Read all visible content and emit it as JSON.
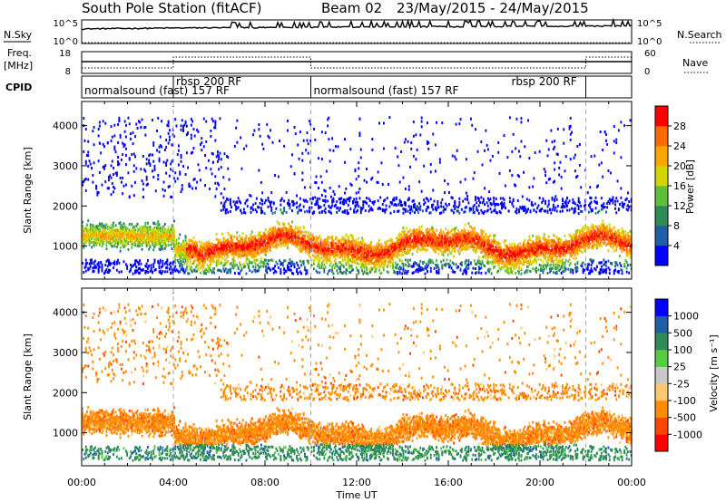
{
  "header": {
    "station": "South Pole Station (fitACF)",
    "beam": "Beam 02",
    "date_range": "23/May/2015 - 24/May/2015"
  },
  "labels": {
    "nsky": "N.Sky",
    "nsearch": "N.Search",
    "freq": "Freq.",
    "mhz": "[MHz]",
    "nave": "Nave",
    "cpid": "CPID",
    "slant_range": "Slant Range [km]",
    "time_ut": "Time UT",
    "power": "Power [dB]",
    "velocity": "Velocity [m s⁻¹]"
  },
  "ticks": {
    "nsky_hi": "10^5",
    "nsky_lo": "10^0",
    "freq_hi": "18",
    "freq_lo": "8",
    "nave_hi": "60",
    "nave_lo": "0"
  },
  "colors": {
    "power": [
      "#0000ff",
      "#1f5fa8",
      "#2e8b57",
      "#5fbf3a",
      "#d4d400",
      "#ffa500",
      "#ff6a00",
      "#ff0000"
    ],
    "velocity": [
      "#ff0000",
      "#ff4500",
      "#ff8c00",
      "#ffc870",
      "#c8c8c8",
      "#55cc44",
      "#2e8b57",
      "#1f5fa8",
      "#0000ff"
    ]
  },
  "chart_data": [
    {
      "type": "line",
      "panel": "N.Sky / N.Search",
      "x": [
        "00:00",
        "04:00",
        "08:00",
        "12:00",
        "16:00",
        "20:00",
        "00:00"
      ],
      "series": [
        {
          "name": "N.Sky",
          "values": [
            1000,
            1200,
            1500,
            2500,
            3000,
            4000,
            2500
          ]
        },
        {
          "name": "N.Search",
          "values": [
            1.5,
            1.5,
            1.5,
            1.5,
            1.5,
            1.5,
            1.5
          ]
        }
      ]
    },
    {
      "type": "line",
      "panel": "Freq. / Nave",
      "x": [
        "00:00",
        "04:00",
        "08:00",
        "12:00",
        "16:00",
        "20:00",
        "00:00"
      ],
      "series": [
        {
          "name": "Freq.",
          "values": [
            12,
            12,
            12,
            12,
            12,
            12,
            12
          ]
        },
        {
          "name": "Nave",
          "values": [
            15,
            45,
            45,
            15,
            15,
            15,
            45
          ]
        }
      ]
    },
    {
      "type": "table",
      "panel": "CPID",
      "segments": [
        {
          "label": "normalsound (fast) 157 RF",
          "start_hour": 0,
          "end_hour": 4
        },
        {
          "label": "rbsp 200 RF",
          "start_hour": 4,
          "end_hour": 10
        },
        {
          "label": "normalsound (fast) 157 RF",
          "start_hour": 10,
          "end_hour": 22
        },
        {
          "label": "rbsp 200 RF",
          "start_hour": 22,
          "end_hour": 24
        }
      ]
    },
    {
      "type": "heatmap",
      "panel": "Power",
      "xlabel": "Time UT",
      "ylabel": "Slant Range [km]",
      "x_ticks": [
        "00:00",
        "04:00",
        "08:00",
        "12:00",
        "16:00",
        "20:00",
        "00:00"
      ],
      "y_ticks": [
        1000,
        2000,
        3000,
        4000
      ],
      "ylim": [
        180,
        4600
      ],
      "colorbar": {
        "label": "Power [dB]",
        "ticks": [
          4,
          8,
          12,
          16,
          20,
          24,
          28
        ]
      }
    },
    {
      "type": "heatmap",
      "panel": "Velocity",
      "xlabel": "Time UT",
      "ylabel": "Slant Range [km]",
      "x_ticks": [
        "00:00",
        "04:00",
        "08:00",
        "12:00",
        "16:00",
        "20:00",
        "00:00"
      ],
      "y_ticks": [
        1000,
        2000,
        3000,
        4000
      ],
      "ylim": [
        180,
        4600
      ],
      "colorbar": {
        "label": "Velocity [m s⁻¹]",
        "ticks": [
          -1000,
          -500,
          -100,
          -25,
          25,
          100,
          500,
          1000
        ]
      }
    }
  ]
}
